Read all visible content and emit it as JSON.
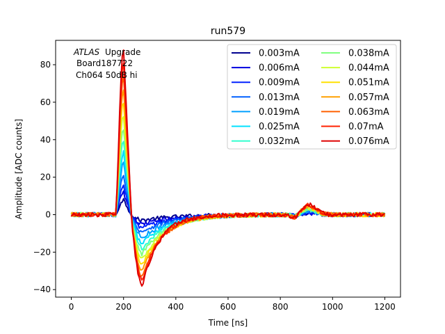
{
  "chart_data": {
    "type": "line",
    "title": "run579",
    "xlabel": "Time [ns]",
    "ylabel": "Amplitude [ADC counts]",
    "xlim": [
      -60,
      1260
    ],
    "ylim": [
      -44,
      93
    ],
    "xticks": [
      0,
      200,
      400,
      600,
      800,
      1000,
      1200
    ],
    "yticks": [
      -40,
      -20,
      0,
      20,
      40,
      60,
      80
    ],
    "grid": false,
    "legend_position": "top-right",
    "legend_columns": 2,
    "annotation": {
      "experiment": "ATLAS",
      "experiment_suffix": "Upgrade",
      "line2": "Board187722",
      "line3": "Ch064 50dB hi"
    },
    "waveform_model": {
      "baseline_start_ns": 0,
      "rise_start_ns": 170,
      "peak_time_ns": 200,
      "zero_crossing_ns": 232,
      "undershoot_time_ns": 272,
      "end_ns": 1200,
      "secondary_bump_ns": 910
    },
    "series": [
      {
        "name": "0.003mA",
        "color": "#00008f",
        "peak": 8,
        "undershoot": -3
      },
      {
        "name": "0.006mA",
        "color": "#0000df",
        "peak": 12,
        "undershoot": -5
      },
      {
        "name": "0.009mA",
        "color": "#0020ff",
        "peak": 15,
        "undershoot": -7
      },
      {
        "name": "0.013mA",
        "color": "#0060ff",
        "peak": 20,
        "undershoot": -9
      },
      {
        "name": "0.019mA",
        "color": "#00a0ff",
        "peak": 27,
        "undershoot": -12
      },
      {
        "name": "0.025mA",
        "color": "#00e0ff",
        "peak": 33,
        "undershoot": -15
      },
      {
        "name": "0.032mA",
        "color": "#30ffcf",
        "peak": 40,
        "undershoot": -18
      },
      {
        "name": "0.038mA",
        "color": "#80ff80",
        "peak": 46,
        "undershoot": -21
      },
      {
        "name": "0.044mA",
        "color": "#cfff30",
        "peak": 53,
        "undershoot": -24
      },
      {
        "name": "0.051mA",
        "color": "#ffe000",
        "peak": 60,
        "undershoot": -27
      },
      {
        "name": "0.057mA",
        "color": "#ffa000",
        "peak": 67,
        "undershoot": -30
      },
      {
        "name": "0.063mA",
        "color": "#ff6000",
        "peak": 74,
        "undershoot": -33
      },
      {
        "name": "0.07mA",
        "color": "#ff2000",
        "peak": 81,
        "undershoot": -35
      },
      {
        "name": "0.076mA",
        "color": "#df0000",
        "peak": 88,
        "undershoot": -38
      }
    ]
  }
}
